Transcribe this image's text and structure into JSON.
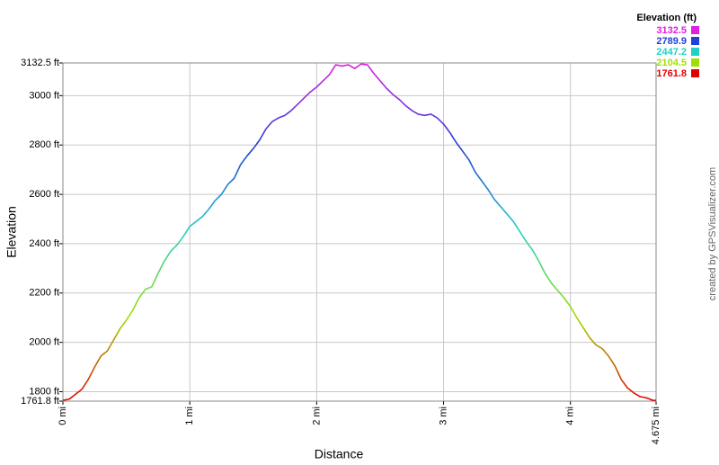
{
  "chart_data": {
    "type": "line",
    "x_label": "Distance",
    "y_label": "Elevation",
    "credit": "created by GPSVisualizer.com",
    "legend": {
      "title": "Elevation (ft)",
      "entries": [
        {
          "label": 3132.5,
          "color": "#e020e0"
        },
        {
          "label": 2789.9,
          "color": "#2040d8"
        },
        {
          "label": 2447.2,
          "color": "#20d0c8"
        },
        {
          "label": 2104.5,
          "color": "#a0e000"
        },
        {
          "label": 1761.8,
          "color": "#e00000"
        }
      ]
    },
    "grid": true,
    "xlim": [
      0,
      4.675
    ],
    "ylim": [
      1761.8,
      3132.5
    ],
    "xticks": [
      {
        "value": 0,
        "label": "0 mi"
      },
      {
        "value": 1,
        "label": "1 mi"
      },
      {
        "value": 2,
        "label": "2 mi"
      },
      {
        "value": 3,
        "label": "3 mi"
      },
      {
        "value": 4,
        "label": "4 mi"
      },
      {
        "value": 4.675,
        "label": "4.675 mi"
      }
    ],
    "yticks": [
      {
        "value": 1761.8,
        "label": "1761.8 ft"
      },
      {
        "value": 1800,
        "label": "1800 ft"
      },
      {
        "value": 2000,
        "label": "2000 ft"
      },
      {
        "value": 2200,
        "label": "2200 ft"
      },
      {
        "value": 2400,
        "label": "2400 ft"
      },
      {
        "value": 2600,
        "label": "2600 ft"
      },
      {
        "value": 2800,
        "label": "2800 ft"
      },
      {
        "value": 3000,
        "label": "3000 ft"
      },
      {
        "value": 3132.5,
        "label": "3132.5 ft"
      }
    ],
    "x": [
      0,
      0.05,
      0.1,
      0.15,
      0.2,
      0.25,
      0.3,
      0.35,
      0.4,
      0.45,
      0.5,
      0.55,
      0.6,
      0.65,
      0.7,
      0.75,
      0.8,
      0.85,
      0.9,
      0.95,
      1.0,
      1.05,
      1.1,
      1.15,
      1.2,
      1.25,
      1.3,
      1.35,
      1.4,
      1.45,
      1.5,
      1.55,
      1.6,
      1.65,
      1.7,
      1.75,
      1.8,
      1.85,
      1.9,
      1.95,
      2.0,
      2.05,
      2.1,
      2.15,
      2.2,
      2.25,
      2.3,
      2.35,
      2.4,
      2.45,
      2.5,
      2.55,
      2.6,
      2.65,
      2.7,
      2.75,
      2.8,
      2.85,
      2.9,
      2.95,
      3.0,
      3.05,
      3.1,
      3.15,
      3.2,
      3.25,
      3.3,
      3.35,
      3.4,
      3.45,
      3.5,
      3.55,
      3.6,
      3.65,
      3.7,
      3.75,
      3.8,
      3.85,
      3.9,
      3.95,
      4.0,
      4.05,
      4.1,
      4.15,
      4.2,
      4.25,
      4.3,
      4.35,
      4.4,
      4.45,
      4.5,
      4.55,
      4.6,
      4.65,
      4.675
    ],
    "values": [
      1765,
      1770,
      1790,
      1810,
      1850,
      1900,
      1945,
      1965,
      2010,
      2055,
      2090,
      2130,
      2180,
      2215,
      2225,
      2280,
      2330,
      2370,
      2395,
      2430,
      2470,
      2490,
      2510,
      2540,
      2575,
      2600,
      2640,
      2665,
      2720,
      2755,
      2785,
      2820,
      2865,
      2895,
      2910,
      2920,
      2940,
      2965,
      2990,
      3015,
      3035,
      3060,
      3085,
      3125,
      3120,
      3125,
      3110,
      3128,
      3125,
      3090,
      3060,
      3030,
      3005,
      2985,
      2960,
      2940,
      2925,
      2920,
      2925,
      2910,
      2885,
      2850,
      2810,
      2775,
      2740,
      2690,
      2655,
      2620,
      2580,
      2550,
      2520,
      2490,
      2450,
      2410,
      2375,
      2330,
      2280,
      2240,
      2210,
      2180,
      2145,
      2100,
      2060,
      2020,
      1990,
      1975,
      1945,
      1905,
      1850,
      1815,
      1795,
      1780,
      1775,
      1765,
      1765
    ]
  }
}
